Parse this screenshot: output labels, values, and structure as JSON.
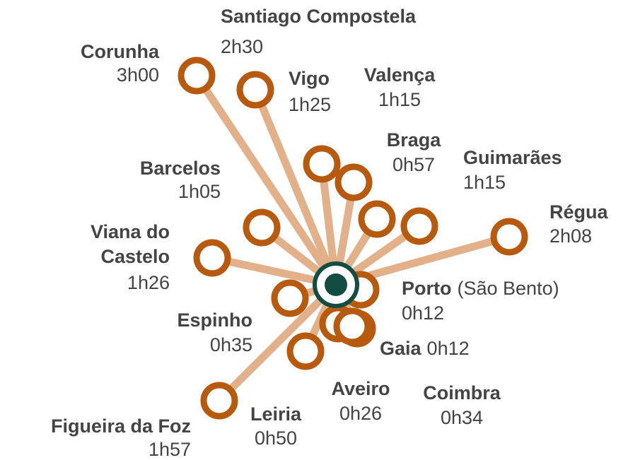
{
  "nodes": [
    {
      "name": [
        "Corunha"
      ],
      "time": "3h00"
    },
    {
      "name": [
        "Santiago Compostela"
      ],
      "time": "2h30"
    },
    {
      "name": [
        "Vigo"
      ],
      "time": "1h25"
    },
    {
      "name": [
        "Valença"
      ],
      "time": "1h15"
    },
    {
      "name": [
        "Braga"
      ],
      "time": "0h57"
    },
    {
      "name": [
        "Guimarães"
      ],
      "time": "1h15"
    },
    {
      "name": [
        "Régua"
      ],
      "time": "2h08"
    },
    {
      "name": [
        "Barcelos"
      ],
      "time": "1h05"
    },
    {
      "name": [
        "Viana do",
        "Castelo"
      ],
      "time": "1h26"
    },
    {
      "name": [
        "Espinho"
      ],
      "time": "0h35"
    },
    {
      "name": [
        "Porto"
      ],
      "note": "(São Bento)",
      "time": "0h12"
    },
    {
      "name": [
        "Gaia"
      ],
      "time": "0h12"
    },
    {
      "name": [
        "Aveiro"
      ],
      "time": "0h26"
    },
    {
      "name": [
        "Coimbra"
      ],
      "time": "0h34"
    },
    {
      "name": [
        "Leiria"
      ],
      "time": "0h50"
    },
    {
      "name": [
        "Figueira da Foz"
      ],
      "time": "1h57"
    }
  ]
}
